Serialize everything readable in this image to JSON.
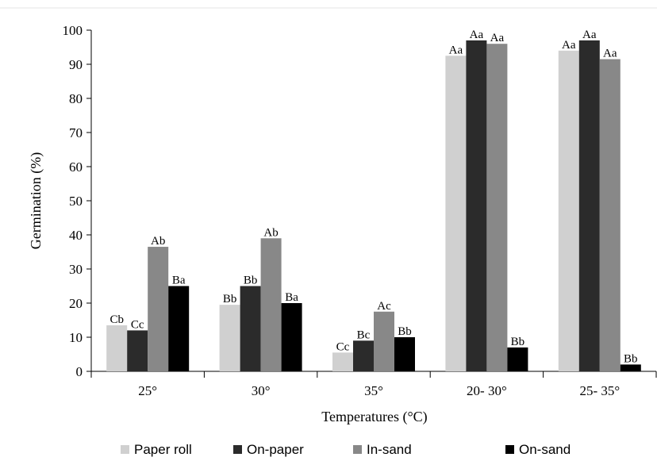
{
  "chart_data": {
    "type": "bar",
    "title": "",
    "xlabel": "Temperatures (°C)",
    "ylabel": "Germination (%)",
    "ylim": [
      0,
      100
    ],
    "yticks": [
      0,
      10,
      20,
      30,
      40,
      50,
      60,
      70,
      80,
      90,
      100
    ],
    "grid": false,
    "legend_position": "bottom",
    "categories": [
      "25°",
      "30°",
      "35°",
      "20- 30°",
      "25- 35°"
    ],
    "series": [
      {
        "name": "Paper roll",
        "color": "#d0d0d0",
        "values": [
          13.5,
          19.5,
          5.5,
          92.5,
          94
        ],
        "labels": [
          "Cb",
          "Bb",
          "Cc",
          "Aa",
          "Aa"
        ]
      },
      {
        "name": "On-paper",
        "color": "#2b2b2b",
        "values": [
          12,
          25,
          9,
          97,
          97
        ],
        "labels": [
          "Cc",
          "Bb",
          "Bc",
          "Aa",
          "Aa"
        ]
      },
      {
        "name": "In-sand",
        "color": "#888888",
        "values": [
          36.5,
          39,
          17.5,
          96,
          91.5
        ],
        "labels": [
          "Ab",
          "Ab",
          "Ac",
          "Aa",
          "Aa"
        ]
      },
      {
        "name": "On-sand",
        "color": "#000000",
        "values": [
          25,
          20,
          10,
          7,
          2
        ],
        "labels": [
          "Ba",
          "Ba",
          "Bb",
          "Bb",
          "Bb"
        ]
      }
    ]
  }
}
